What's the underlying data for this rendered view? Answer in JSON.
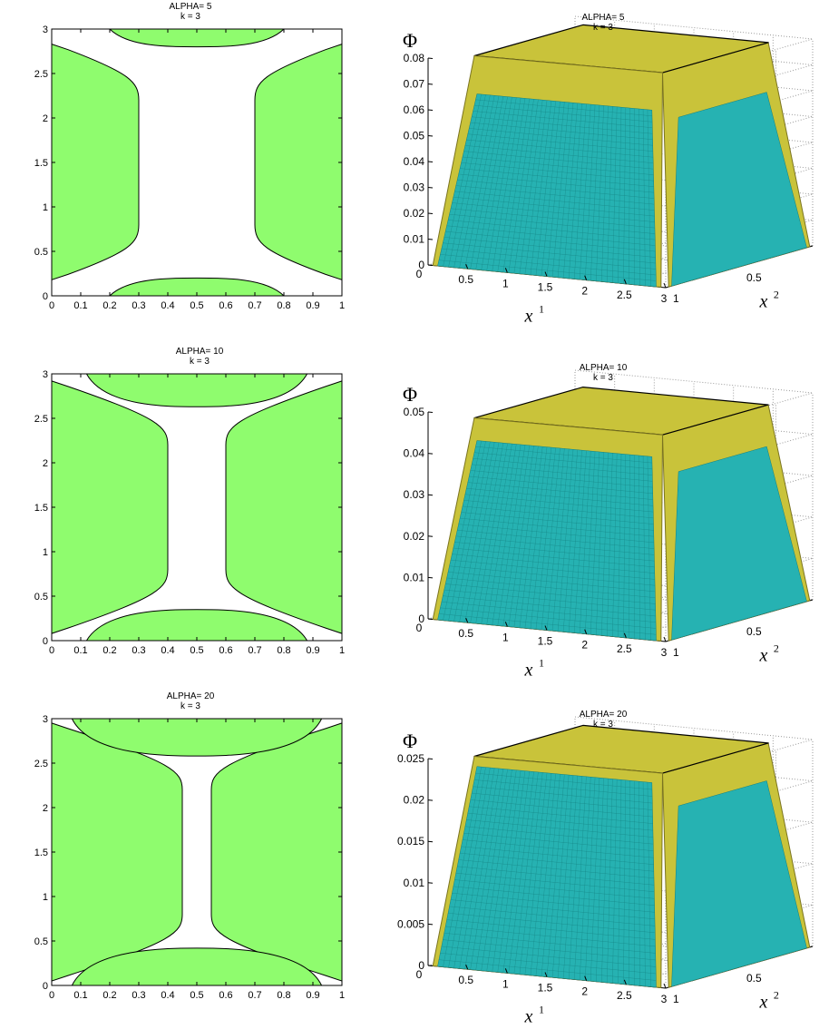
{
  "figure": {
    "rows": [
      {
        "contour": {
          "title": "ALPHA= 5",
          "subtitle": "k = 3"
        },
        "surface": {
          "title": "ALPHA= 5",
          "subtitle": "k = 3",
          "zlabel": "Φ",
          "x1label": "x",
          "x2label": "x"
        }
      },
      {
        "contour": {
          "title": "ALPHA= 10",
          "subtitle": "k = 3"
        },
        "surface": {
          "title": "ALPHA= 10",
          "subtitle": "k = 3",
          "zlabel": "Φ",
          "x1label": "x",
          "x2label": "x"
        }
      },
      {
        "contour": {
          "title": "ALPHA= 20",
          "subtitle": "k = 3"
        },
        "surface": {
          "title": "ALPHA= 20",
          "subtitle": "k = 3",
          "zlabel": "Φ",
          "x1label": "x",
          "x2label": "x"
        }
      }
    ],
    "colors": {
      "green": "#8ffc6e",
      "white": "#ffffff",
      "cyan": "#26b2b2",
      "cyan_dark": "#127f80",
      "yellow": "#c9c33a",
      "yellow_dark": "#7b7420",
      "grid": "#9a9a9a"
    }
  },
  "chart_data": [
    {
      "type": "area",
      "title": "ALPHA= 5",
      "subtitle": "k = 3",
      "xlim": [
        0,
        1
      ],
      "ylim": [
        0,
        3
      ],
      "xticks": [
        "0",
        "0.1",
        "0.2",
        "0.3",
        "0.4",
        "0.5",
        "0.6",
        "0.7",
        "0.8",
        "0.9",
        "1"
      ],
      "yticks": [
        "0",
        "0.5",
        "1",
        "1.5",
        "2",
        "2.5",
        "3"
      ],
      "region_color": "green",
      "central_strip": {
        "x_left": 0.3,
        "x_right": 0.7
      },
      "left_blob": {
        "x_inner": 0.3,
        "y_bottom": 0.18,
        "y_top": 2.83
      },
      "top_cap": {
        "x_left": 0.2,
        "x_right": 0.8,
        "y_edge": 2.75,
        "y_peak": 2.8
      },
      "bottom_cap": {
        "x_left": 0.2,
        "x_right": 0.8,
        "y_edge": 0.0,
        "y_peak": 0.2
      }
    },
    {
      "type": "heatmap",
      "title": "ALPHA= 5",
      "subtitle": "k = 3",
      "zlabel": "Φ",
      "xlabel": "x1",
      "ylabel": "x2",
      "zlim": [
        0,
        0.08
      ],
      "zticks": [
        "0",
        "0.01",
        "0.02",
        "0.03",
        "0.04",
        "0.05",
        "0.06",
        "0.07",
        "0.08"
      ],
      "x1ticks": [
        "0.5",
        "1",
        "1.5",
        "2",
        "2.5",
        "3"
      ],
      "x2ticks": [
        "0",
        "0.5",
        "1"
      ],
      "peak_value": 0.08,
      "plateau_value": 0.066
    },
    {
      "type": "area",
      "title": "ALPHA= 10",
      "subtitle": "k = 3",
      "xlim": [
        0,
        1
      ],
      "ylim": [
        0,
        3
      ],
      "xticks": [
        "0",
        "0.1",
        "0.2",
        "0.3",
        "0.4",
        "0.5",
        "0.6",
        "0.7",
        "0.8",
        "0.9",
        "1"
      ],
      "yticks": [
        "0",
        "0.5",
        "1",
        "1.5",
        "2",
        "2.5",
        "3"
      ],
      "region_color": "green",
      "central_strip": {
        "x_left": 0.4,
        "x_right": 0.6
      },
      "left_blob": {
        "x_inner": 0.4,
        "y_bottom": 0.08,
        "y_top": 2.92
      },
      "top_cap": {
        "x_left": 0.12,
        "x_right": 0.88,
        "y_edge": 2.98,
        "y_peak": 2.63
      },
      "bottom_cap": {
        "x_left": 0.12,
        "x_right": 0.88,
        "y_edge": 0.0,
        "y_peak": 0.35
      }
    },
    {
      "type": "heatmap",
      "title": "ALPHA= 10",
      "subtitle": "k = 3",
      "zlabel": "Φ",
      "xlabel": "x1",
      "ylabel": "x2",
      "zlim": [
        0,
        0.05
      ],
      "zticks": [
        "0",
        "0.01",
        "0.02",
        "0.03",
        "0.04",
        "0.05"
      ],
      "x1ticks": [
        "0.5",
        "1",
        "1.5",
        "2",
        "2.5",
        "3"
      ],
      "x2ticks": [
        "0",
        "0.5",
        "1"
      ],
      "peak_value": 0.048,
      "plateau_value": 0.043
    },
    {
      "type": "area",
      "title": "ALPHA= 20",
      "subtitle": "k = 3",
      "xlim": [
        0,
        1
      ],
      "ylim": [
        0,
        3
      ],
      "xticks": [
        "0",
        "0.1",
        "0.2",
        "0.3",
        "0.4",
        "0.5",
        "0.6",
        "0.7",
        "0.8",
        "0.9",
        "1"
      ],
      "yticks": [
        "0",
        "0.5",
        "1",
        "1.5",
        "2",
        "2.5",
        "3"
      ],
      "region_color": "green",
      "central_strip": {
        "x_left": 0.45,
        "x_right": 0.55
      },
      "left_blob": {
        "x_inner": 0.45,
        "y_bottom": 0.05,
        "y_top": 2.95
      },
      "top_cap": {
        "x_left": 0.07,
        "x_right": 0.93,
        "y_edge": 2.98,
        "y_peak": 2.58
      },
      "bottom_cap": {
        "x_left": 0.07,
        "x_right": 0.93,
        "y_edge": 0.0,
        "y_peak": 0.42
      }
    },
    {
      "type": "heatmap",
      "title": "ALPHA= 20",
      "subtitle": "k = 3",
      "zlabel": "Φ",
      "xlabel": "x1",
      "ylabel": "x2",
      "zlim": [
        0,
        0.025
      ],
      "zticks": [
        "0",
        "0.005",
        "0.01",
        "0.015",
        "0.02",
        "0.025"
      ],
      "x1ticks": [
        "0.5",
        "1",
        "1.5",
        "2",
        "2.5",
        "3"
      ],
      "x2ticks": [
        "0",
        "0.5",
        "1"
      ],
      "peak_value": 0.025,
      "plateau_value": 0.024
    }
  ]
}
